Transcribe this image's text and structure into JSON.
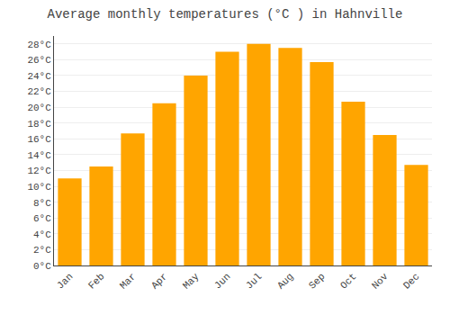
{
  "chart_data": {
    "type": "bar",
    "title": "Average monthly temperatures (°C ) in Hahnville",
    "categories": [
      "Jan",
      "Feb",
      "Mar",
      "Apr",
      "May",
      "Jun",
      "Jul",
      "Aug",
      "Sep",
      "Oct",
      "Nov",
      "Dec"
    ],
    "values": [
      11.0,
      12.5,
      16.7,
      20.5,
      24.0,
      27.0,
      28.0,
      27.5,
      25.7,
      20.7,
      16.5,
      12.7
    ],
    "color": "#FFA500",
    "ylim": [
      0,
      29
    ],
    "yticks": [
      {
        "value": 0,
        "label": "0°C"
      },
      {
        "value": 2,
        "label": "2°C"
      },
      {
        "value": 4,
        "label": "4°C"
      },
      {
        "value": 6,
        "label": "6°C"
      },
      {
        "value": 8,
        "label": "8°C"
      },
      {
        "value": 10,
        "label": "10°C"
      },
      {
        "value": 12,
        "label": "12°C"
      },
      {
        "value": 14,
        "label": "14°C"
      },
      {
        "value": 16,
        "label": "16°C"
      },
      {
        "value": 18,
        "label": "18°C"
      },
      {
        "value": 20,
        "label": "20°C"
      },
      {
        "value": 22,
        "label": "22°C"
      },
      {
        "value": 24,
        "label": "24°C"
      },
      {
        "value": 26,
        "label": "26°C"
      },
      {
        "value": 28,
        "label": "28°C"
      }
    ],
    "grid": true
  }
}
